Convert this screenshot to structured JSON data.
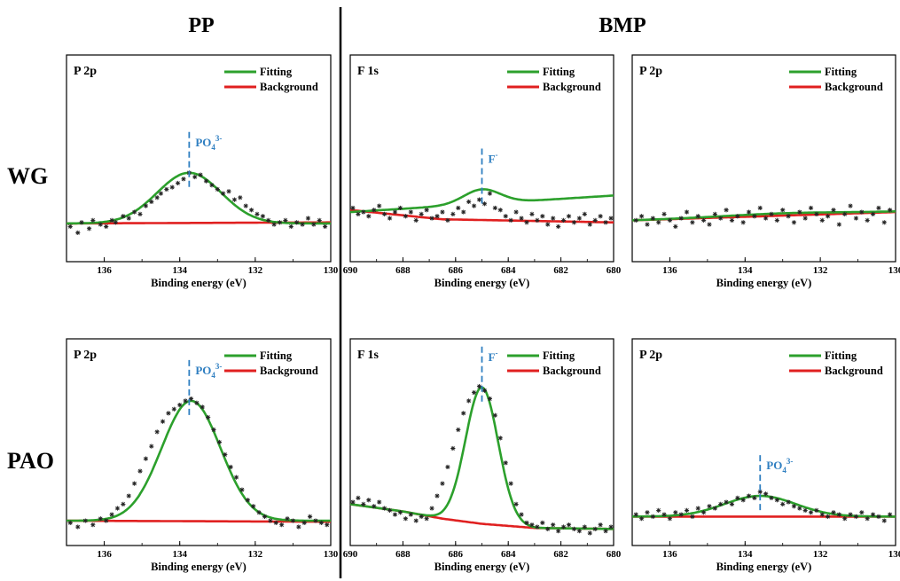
{
  "header": {
    "left": "PP",
    "right": "BMP"
  },
  "rows": [
    "WG",
    "PAO"
  ],
  "colors": {
    "fitting": "#2ca02c",
    "background": "#e02020",
    "data": "#222222",
    "annotation": "#2f7fc1"
  },
  "chart_data": [
    {
      "type": "scatter",
      "title": "P 2p",
      "xlabel": "Binding energy (eV)",
      "ylabel": "",
      "xlim": [
        137,
        130
      ],
      "ylim": [
        0,
        1
      ],
      "xticks": [
        136,
        134,
        132,
        130
      ],
      "grid": false,
      "legend": "top-right",
      "series": [
        {
          "name": "Fitting",
          "kind": "gaussian",
          "base": 0.185,
          "peak_center": 133.75,
          "peak_height": 0.245,
          "peak_sigma": 0.85
        },
        {
          "name": "Background",
          "kind": "line",
          "x": [
            137,
            130
          ],
          "y": [
            0.185,
            0.19
          ]
        },
        {
          "name": "",
          "kind": "points",
          "x": [
            136.9,
            136.7,
            136.6,
            136.4,
            136.3,
            136.1,
            135.95,
            135.8,
            135.7,
            135.5,
            135.35,
            135.2,
            135.05,
            134.9,
            134.75,
            134.6,
            134.5,
            134.35,
            134.2,
            134.05,
            133.9,
            133.75,
            133.6,
            133.45,
            133.3,
            133.15,
            133.0,
            132.85,
            132.7,
            132.55,
            132.4,
            132.25,
            132.1,
            131.95,
            131.8,
            131.65,
            131.5,
            131.35,
            131.2,
            131.05,
            130.9,
            130.75,
            130.6,
            130.45,
            130.3,
            130.15
          ],
          "y": [
            0.17,
            0.14,
            0.19,
            0.16,
            0.2,
            0.18,
            0.17,
            0.2,
            0.19,
            0.22,
            0.21,
            0.24,
            0.23,
            0.27,
            0.29,
            0.31,
            0.33,
            0.35,
            0.36,
            0.38,
            0.4,
            0.43,
            0.41,
            0.42,
            0.39,
            0.37,
            0.35,
            0.33,
            0.34,
            0.3,
            0.31,
            0.27,
            0.25,
            0.23,
            0.22,
            0.2,
            0.18,
            0.19,
            0.2,
            0.17,
            0.19,
            0.18,
            0.21,
            0.18,
            0.2,
            0.17
          ]
        }
      ],
      "annotations": [
        {
          "label": "PO",
          "sub": "4",
          "sup": "3-",
          "x": 133.75
        }
      ]
    },
    {
      "type": "scatter",
      "title": "F 1s",
      "xlabel": "Binding energy (eV)",
      "ylabel": "",
      "xlim": [
        690,
        680
      ],
      "ylim": [
        0,
        1
      ],
      "xticks": [
        690,
        688,
        686,
        684,
        682,
        680
      ],
      "grid": false,
      "legend": "top-right",
      "series": [
        {
          "name": "Fitting",
          "kind": "gaussian",
          "base": 0.24,
          "base_slope": -0.008,
          "peak_center": 685.0,
          "peak_height": 0.07,
          "peak_sigma": 0.7
        },
        {
          "name": "Background",
          "kind": "line",
          "x": [
            690,
            686.5,
            680
          ],
          "y": [
            0.25,
            0.205,
            0.19
          ]
        },
        {
          "name": "",
          "kind": "points",
          "x": [
            689.9,
            689.7,
            689.5,
            689.3,
            689.1,
            688.9,
            688.7,
            688.5,
            688.3,
            688.1,
            687.9,
            687.7,
            687.5,
            687.3,
            687.1,
            686.9,
            686.7,
            686.5,
            686.3,
            686.1,
            685.9,
            685.7,
            685.5,
            685.3,
            685.1,
            684.9,
            684.7,
            684.5,
            684.3,
            684.1,
            683.9,
            683.7,
            683.5,
            683.3,
            683.1,
            682.9,
            682.7,
            682.5,
            682.3,
            682.1,
            681.9,
            681.7,
            681.5,
            681.3,
            681.1,
            680.9,
            680.7,
            680.5,
            680.3,
            680.1
          ],
          "y": [
            0.26,
            0.23,
            0.24,
            0.22,
            0.25,
            0.27,
            0.23,
            0.21,
            0.24,
            0.26,
            0.22,
            0.24,
            0.2,
            0.23,
            0.25,
            0.21,
            0.22,
            0.24,
            0.2,
            0.23,
            0.26,
            0.24,
            0.29,
            0.27,
            0.3,
            0.28,
            0.33,
            0.26,
            0.25,
            0.22,
            0.2,
            0.24,
            0.21,
            0.19,
            0.23,
            0.2,
            0.22,
            0.18,
            0.21,
            0.17,
            0.2,
            0.22,
            0.19,
            0.21,
            0.23,
            0.18,
            0.2,
            0.22,
            0.19,
            0.21
          ]
        }
      ],
      "annotations": [
        {
          "label": "F",
          "sub": "",
          "sup": "-",
          "x": 685.0
        }
      ]
    },
    {
      "type": "scatter",
      "title": "P 2p",
      "xlabel": "Binding energy (eV)",
      "ylabel": "",
      "xlim": [
        137,
        130
      ],
      "ylim": [
        0,
        1
      ],
      "xticks": [
        136,
        134,
        132,
        130
      ],
      "grid": false,
      "legend": "top-right",
      "series": [
        {
          "name": "Fitting",
          "kind": "gaussian",
          "base": 0.2,
          "base_slope": -0.006,
          "peak_center": 133,
          "peak_height": 0.01,
          "peak_sigma": 1.5
        },
        {
          "name": "Background",
          "kind": "line",
          "x": [
            137,
            130
          ],
          "y": [
            0.2,
            0.24
          ]
        },
        {
          "name": "",
          "kind": "points",
          "x": [
            136.9,
            136.75,
            136.6,
            136.45,
            136.3,
            136.15,
            136.0,
            135.85,
            135.7,
            135.55,
            135.4,
            135.25,
            135.1,
            134.95,
            134.8,
            134.65,
            134.5,
            134.35,
            134.2,
            134.05,
            133.9,
            133.75,
            133.6,
            133.45,
            133.3,
            133.15,
            133.0,
            132.85,
            132.7,
            132.55,
            132.4,
            132.25,
            132.1,
            131.95,
            131.8,
            131.65,
            131.5,
            131.35,
            131.2,
            131.05,
            130.9,
            130.75,
            130.6,
            130.45,
            130.3,
            130.15
          ],
          "y": [
            0.2,
            0.22,
            0.18,
            0.21,
            0.19,
            0.23,
            0.2,
            0.17,
            0.21,
            0.24,
            0.19,
            0.22,
            0.2,
            0.18,
            0.23,
            0.21,
            0.25,
            0.2,
            0.22,
            0.19,
            0.24,
            0.22,
            0.26,
            0.21,
            0.23,
            0.2,
            0.25,
            0.22,
            0.19,
            0.24,
            0.21,
            0.26,
            0.23,
            0.2,
            0.22,
            0.25,
            0.18,
            0.23,
            0.27,
            0.21,
            0.24,
            0.2,
            0.23,
            0.26,
            0.19,
            0.25
          ]
        }
      ],
      "annotations": []
    },
    {
      "type": "scatter",
      "title": "P 2p",
      "xlabel": "Binding energy (eV)",
      "ylabel": "",
      "xlim": [
        137,
        130
      ],
      "ylim": [
        0,
        1
      ],
      "xticks": [
        136,
        134,
        132,
        130
      ],
      "grid": false,
      "legend": "top-right",
      "series": [
        {
          "name": "Fitting",
          "kind": "gaussian",
          "base": 0.12,
          "peak_center": 133.7,
          "peak_height": 0.58,
          "peak_sigma": 0.78
        },
        {
          "name": "Background",
          "kind": "line",
          "x": [
            137,
            130
          ],
          "y": [
            0.12,
            0.115
          ]
        },
        {
          "name": "",
          "kind": "points",
          "x": [
            136.9,
            136.7,
            136.5,
            136.3,
            136.1,
            135.95,
            135.8,
            135.65,
            135.5,
            135.35,
            135.2,
            135.05,
            134.9,
            134.75,
            134.6,
            134.45,
            134.3,
            134.15,
            134.0,
            133.85,
            133.7,
            133.55,
            133.4,
            133.25,
            133.1,
            132.95,
            132.8,
            132.65,
            132.5,
            132.35,
            132.2,
            132.05,
            131.9,
            131.75,
            131.6,
            131.45,
            131.3,
            131.15,
            131.0,
            130.85,
            130.7,
            130.55,
            130.4,
            130.25,
            130.1
          ],
          "y": [
            0.11,
            0.09,
            0.12,
            0.1,
            0.13,
            0.12,
            0.15,
            0.18,
            0.2,
            0.24,
            0.3,
            0.36,
            0.42,
            0.48,
            0.55,
            0.6,
            0.64,
            0.66,
            0.68,
            0.7,
            0.71,
            0.69,
            0.67,
            0.62,
            0.56,
            0.5,
            0.44,
            0.38,
            0.33,
            0.27,
            0.22,
            0.19,
            0.16,
            0.14,
            0.12,
            0.11,
            0.1,
            0.13,
            0.12,
            0.09,
            0.11,
            0.14,
            0.12,
            0.11,
            0.1
          ]
        }
      ],
      "annotations": [
        {
          "label": "PO",
          "sub": "4",
          "sup": "3-",
          "x": 133.75
        }
      ]
    },
    {
      "type": "scatter",
      "title": "F 1s",
      "xlabel": "Binding energy (eV)",
      "ylabel": "",
      "xlim": [
        690,
        680
      ],
      "ylim": [
        0,
        1
      ],
      "xticks": [
        690,
        688,
        686,
        684,
        682,
        680
      ],
      "grid": false,
      "legend": "top-right",
      "series": [
        {
          "name": "Fitting",
          "kind": "gaussian",
          "base_curve": "background",
          "peak_center": 685.0,
          "peak_height": 0.66,
          "peak_sigma": 0.62
        },
        {
          "name": "Background",
          "kind": "line",
          "x": [
            690,
            688,
            686.5,
            685,
            683,
            680
          ],
          "y": [
            0.2,
            0.165,
            0.13,
            0.105,
            0.085,
            0.08
          ]
        },
        {
          "name": "",
          "kind": "points",
          "x": [
            689.9,
            689.7,
            689.5,
            689.3,
            689.1,
            688.9,
            688.7,
            688.5,
            688.3,
            688.1,
            687.9,
            687.7,
            687.5,
            687.3,
            687.1,
            686.9,
            686.7,
            686.5,
            686.3,
            686.1,
            685.9,
            685.7,
            685.5,
            685.3,
            685.1,
            684.9,
            684.7,
            684.5,
            684.3,
            684.1,
            683.9,
            683.7,
            683.5,
            683.3,
            683.1,
            682.9,
            682.7,
            682.5,
            682.3,
            682.1,
            681.9,
            681.7,
            681.5,
            681.3,
            681.1,
            680.9,
            680.7,
            680.5,
            680.3,
            680.1
          ],
          "y": [
            0.21,
            0.23,
            0.2,
            0.22,
            0.19,
            0.21,
            0.18,
            0.17,
            0.15,
            0.16,
            0.13,
            0.15,
            0.12,
            0.14,
            0.13,
            0.18,
            0.24,
            0.3,
            0.38,
            0.47,
            0.56,
            0.64,
            0.7,
            0.74,
            0.77,
            0.75,
            0.71,
            0.63,
            0.52,
            0.4,
            0.3,
            0.2,
            0.15,
            0.11,
            0.1,
            0.09,
            0.11,
            0.08,
            0.1,
            0.07,
            0.09,
            0.1,
            0.08,
            0.07,
            0.09,
            0.06,
            0.08,
            0.1,
            0.07,
            0.09
          ]
        }
      ],
      "annotations": [
        {
          "label": "F",
          "sub": "",
          "sup": "-",
          "x": 685.0
        }
      ]
    },
    {
      "type": "scatter",
      "title": "P 2p",
      "xlabel": "Binding energy (eV)",
      "ylabel": "",
      "xlim": [
        137,
        130
      ],
      "ylim": [
        0,
        1
      ],
      "xticks": [
        136,
        134,
        132,
        130
      ],
      "grid": false,
      "legend": "top-right",
      "series": [
        {
          "name": "Fitting",
          "kind": "gaussian",
          "base": 0.14,
          "peak_center": 133.6,
          "peak_height": 0.1,
          "peak_sigma": 0.95
        },
        {
          "name": "Background",
          "kind": "line",
          "x": [
            137,
            130
          ],
          "y": [
            0.14,
            0.14
          ]
        },
        {
          "name": "",
          "kind": "points",
          "x": [
            136.9,
            136.75,
            136.6,
            136.45,
            136.3,
            136.15,
            136.0,
            135.85,
            135.7,
            135.55,
            135.4,
            135.25,
            135.1,
            134.95,
            134.8,
            134.65,
            134.5,
            134.35,
            134.2,
            134.05,
            133.9,
            133.75,
            133.6,
            133.45,
            133.3,
            133.15,
            133.0,
            132.85,
            132.7,
            132.55,
            132.4,
            132.25,
            132.1,
            131.95,
            131.8,
            131.65,
            131.5,
            131.35,
            131.2,
            131.05,
            130.9,
            130.75,
            130.6,
            130.45,
            130.3,
            130.15
          ],
          "y": [
            0.15,
            0.13,
            0.16,
            0.14,
            0.17,
            0.15,
            0.13,
            0.16,
            0.15,
            0.17,
            0.14,
            0.18,
            0.16,
            0.19,
            0.18,
            0.2,
            0.21,
            0.2,
            0.23,
            0.22,
            0.24,
            0.23,
            0.26,
            0.25,
            0.23,
            0.22,
            0.2,
            0.21,
            0.19,
            0.18,
            0.17,
            0.16,
            0.17,
            0.15,
            0.14,
            0.16,
            0.15,
            0.13,
            0.15,
            0.14,
            0.16,
            0.13,
            0.15,
            0.14,
            0.12,
            0.15
          ]
        }
      ],
      "annotations": [
        {
          "label": "PO",
          "sub": "4",
          "sup": "3-",
          "x": 133.6
        }
      ]
    }
  ]
}
